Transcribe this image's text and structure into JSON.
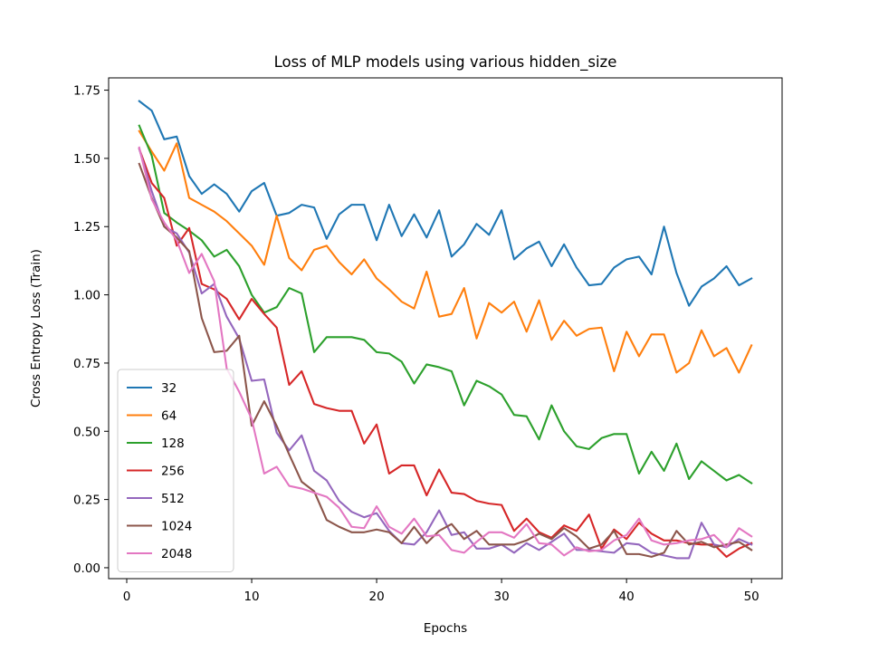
{
  "chart_data": {
    "type": "line",
    "title": "Loss of MLP models using various hidden_size",
    "xlabel": "Epochs",
    "ylabel": "Cross Entropy Loss (Train)",
    "xlim": [
      -1.45,
      52.45
    ],
    "ylim": [
      -0.04,
      1.795
    ],
    "xticks": [
      0,
      10,
      20,
      30,
      40,
      50
    ],
    "xtick_labels": [
      "0",
      "10",
      "20",
      "30",
      "40",
      "50"
    ],
    "yticks": [
      0.0,
      0.25,
      0.5,
      0.75,
      1.0,
      1.25,
      1.5,
      1.75
    ],
    "ytick_labels": [
      "0.00",
      "0.25",
      "0.50",
      "0.75",
      "1.00",
      "1.25",
      "1.50",
      "1.75"
    ],
    "grid": false,
    "legend_position": "lower-left",
    "x": [
      1,
      2,
      3,
      4,
      5,
      6,
      7,
      8,
      9,
      10,
      11,
      12,
      13,
      14,
      15,
      16,
      17,
      18,
      19,
      20,
      21,
      22,
      23,
      24,
      25,
      26,
      27,
      28,
      29,
      30,
      31,
      32,
      33,
      34,
      35,
      36,
      37,
      38,
      39,
      40,
      41,
      42,
      43,
      44,
      45,
      46,
      47,
      48,
      49,
      50
    ],
    "series": [
      {
        "name": "32",
        "color": "#1f77b4",
        "values": [
          1.71,
          1.675,
          1.57,
          1.58,
          1.435,
          1.37,
          1.405,
          1.37,
          1.305,
          1.38,
          1.41,
          1.29,
          1.3,
          1.33,
          1.32,
          1.205,
          1.295,
          1.33,
          1.33,
          1.2,
          1.33,
          1.215,
          1.295,
          1.21,
          1.31,
          1.14,
          1.185,
          1.26,
          1.22,
          1.31,
          1.13,
          1.17,
          1.195,
          1.105,
          1.185,
          1.1,
          1.035,
          1.04,
          1.1,
          1.13,
          1.14,
          1.075,
          1.25,
          1.08,
          0.96,
          1.03,
          1.06,
          1.105,
          1.035,
          1.06
        ]
      },
      {
        "name": "64",
        "color": "#ff7f0e",
        "values": [
          1.6,
          1.525,
          1.455,
          1.555,
          1.355,
          1.33,
          1.305,
          1.27,
          1.225,
          1.18,
          1.11,
          1.29,
          1.135,
          1.09,
          1.165,
          1.18,
          1.12,
          1.075,
          1.13,
          1.06,
          1.02,
          0.975,
          0.95,
          1.085,
          0.92,
          0.93,
          1.025,
          0.84,
          0.97,
          0.935,
          0.975,
          0.865,
          0.98,
          0.835,
          0.905,
          0.85,
          0.875,
          0.88,
          0.72,
          0.865,
          0.775,
          0.855,
          0.855,
          0.715,
          0.75,
          0.87,
          0.775,
          0.805,
          0.715,
          0.815
        ]
      },
      {
        "name": "128",
        "color": "#2ca02c",
        "values": [
          1.62,
          1.51,
          1.3,
          1.265,
          1.235,
          1.2,
          1.14,
          1.165,
          1.105,
          1.0,
          0.935,
          0.955,
          1.025,
          1.005,
          0.79,
          0.845,
          0.845,
          0.845,
          0.835,
          0.79,
          0.785,
          0.755,
          0.675,
          0.745,
          0.735,
          0.72,
          0.595,
          0.685,
          0.665,
          0.635,
          0.56,
          0.555,
          0.47,
          0.595,
          0.5,
          0.445,
          0.435,
          0.475,
          0.49,
          0.49,
          0.345,
          0.425,
          0.355,
          0.455,
          0.325,
          0.39,
          0.355,
          0.32,
          0.34,
          0.31
        ]
      },
      {
        "name": "256",
        "color": "#d62728",
        "values": [
          1.535,
          1.41,
          1.355,
          1.18,
          1.245,
          1.04,
          1.02,
          0.985,
          0.91,
          0.985,
          0.93,
          0.88,
          0.67,
          0.72,
          0.6,
          0.585,
          0.575,
          0.575,
          0.455,
          0.525,
          0.345,
          0.375,
          0.375,
          0.265,
          0.36,
          0.275,
          0.27,
          0.245,
          0.235,
          0.23,
          0.135,
          0.18,
          0.13,
          0.11,
          0.155,
          0.135,
          0.195,
          0.07,
          0.14,
          0.105,
          0.165,
          0.125,
          0.1,
          0.1,
          0.09,
          0.085,
          0.085,
          0.04,
          0.07,
          0.09
        ]
      },
      {
        "name": "512",
        "color": "#9467bd",
        "values": [
          1.535,
          1.38,
          1.25,
          1.225,
          1.155,
          1.005,
          1.04,
          0.92,
          0.84,
          0.685,
          0.69,
          0.495,
          0.43,
          0.485,
          0.355,
          0.32,
          0.245,
          0.205,
          0.185,
          0.2,
          0.135,
          0.09,
          0.085,
          0.13,
          0.21,
          0.12,
          0.13,
          0.07,
          0.07,
          0.085,
          0.055,
          0.09,
          0.065,
          0.095,
          0.125,
          0.065,
          0.065,
          0.06,
          0.055,
          0.09,
          0.085,
          0.055,
          0.045,
          0.035,
          0.035,
          0.165,
          0.085,
          0.075,
          0.105,
          0.085
        ]
      },
      {
        "name": "1024",
        "color": "#8c564b",
        "values": [
          1.48,
          1.355,
          1.25,
          1.21,
          1.16,
          0.915,
          0.79,
          0.795,
          0.85,
          0.52,
          0.61,
          0.52,
          0.415,
          0.315,
          0.28,
          0.175,
          0.15,
          0.13,
          0.13,
          0.14,
          0.13,
          0.09,
          0.15,
          0.09,
          0.135,
          0.16,
          0.105,
          0.135,
          0.085,
          0.085,
          0.085,
          0.1,
          0.125,
          0.105,
          0.145,
          0.115,
          0.07,
          0.085,
          0.135,
          0.05,
          0.05,
          0.04,
          0.055,
          0.135,
          0.085,
          0.095,
          0.075,
          0.085,
          0.095,
          0.065
        ]
      },
      {
        "name": "2048",
        "color": "#e377c2",
        "values": [
          1.54,
          1.35,
          1.265,
          1.2,
          1.08,
          1.15,
          1.05,
          0.73,
          0.645,
          0.545,
          0.345,
          0.37,
          0.3,
          0.29,
          0.275,
          0.26,
          0.22,
          0.15,
          0.145,
          0.225,
          0.15,
          0.125,
          0.18,
          0.115,
          0.12,
          0.065,
          0.055,
          0.095,
          0.13,
          0.13,
          0.11,
          0.16,
          0.09,
          0.085,
          0.045,
          0.075,
          0.06,
          0.065,
          0.1,
          0.12,
          0.18,
          0.1,
          0.085,
          0.09,
          0.1,
          0.105,
          0.12,
          0.075,
          0.145,
          0.115
        ]
      }
    ]
  }
}
